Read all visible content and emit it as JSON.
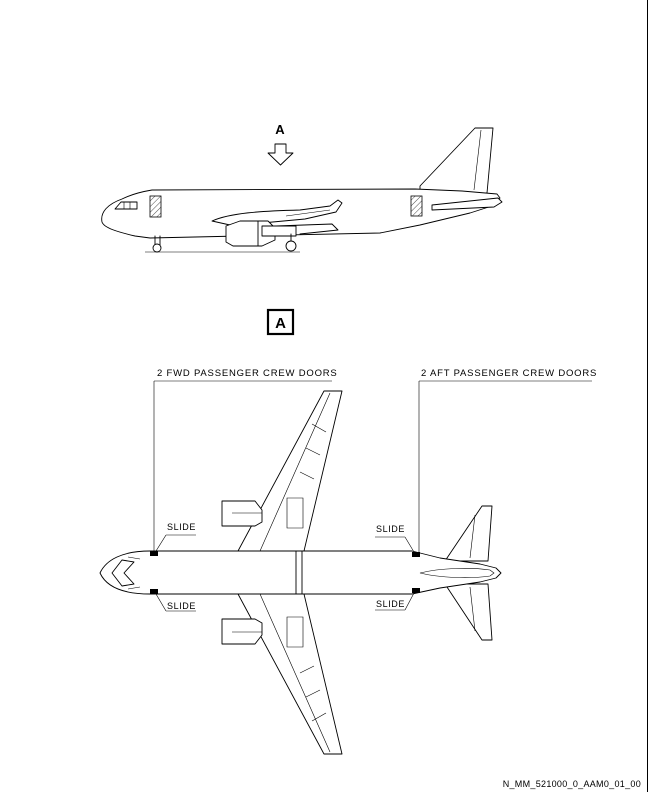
{
  "view_label": "A",
  "view_box_label": "A",
  "callouts": {
    "fwd_doors": "2 FWD PASSENGER CREW DOORS",
    "aft_doors": "2 AFT PASSENGER CREW DOORS",
    "slide_fwd_left": "SLIDE",
    "slide_fwd_right": "SLIDE",
    "slide_aft_left": "SLIDE",
    "slide_aft_right": "SLIDE"
  },
  "figure_ref": "N_MM_521000_0_AAM0_01_00"
}
